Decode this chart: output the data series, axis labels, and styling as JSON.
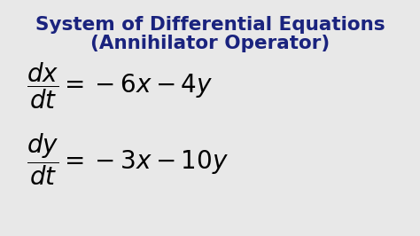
{
  "title_line1": "System of Differential Equations",
  "title_line2": "(Annihilator Operator)",
  "title_color": "#1a237e",
  "title_fontsize": 15.5,
  "eq_fontsize": 20,
  "eq_color": "black",
  "bg_color": "#e8e8e8",
  "fig_width": 4.74,
  "fig_height": 2.66,
  "dpi": 100
}
